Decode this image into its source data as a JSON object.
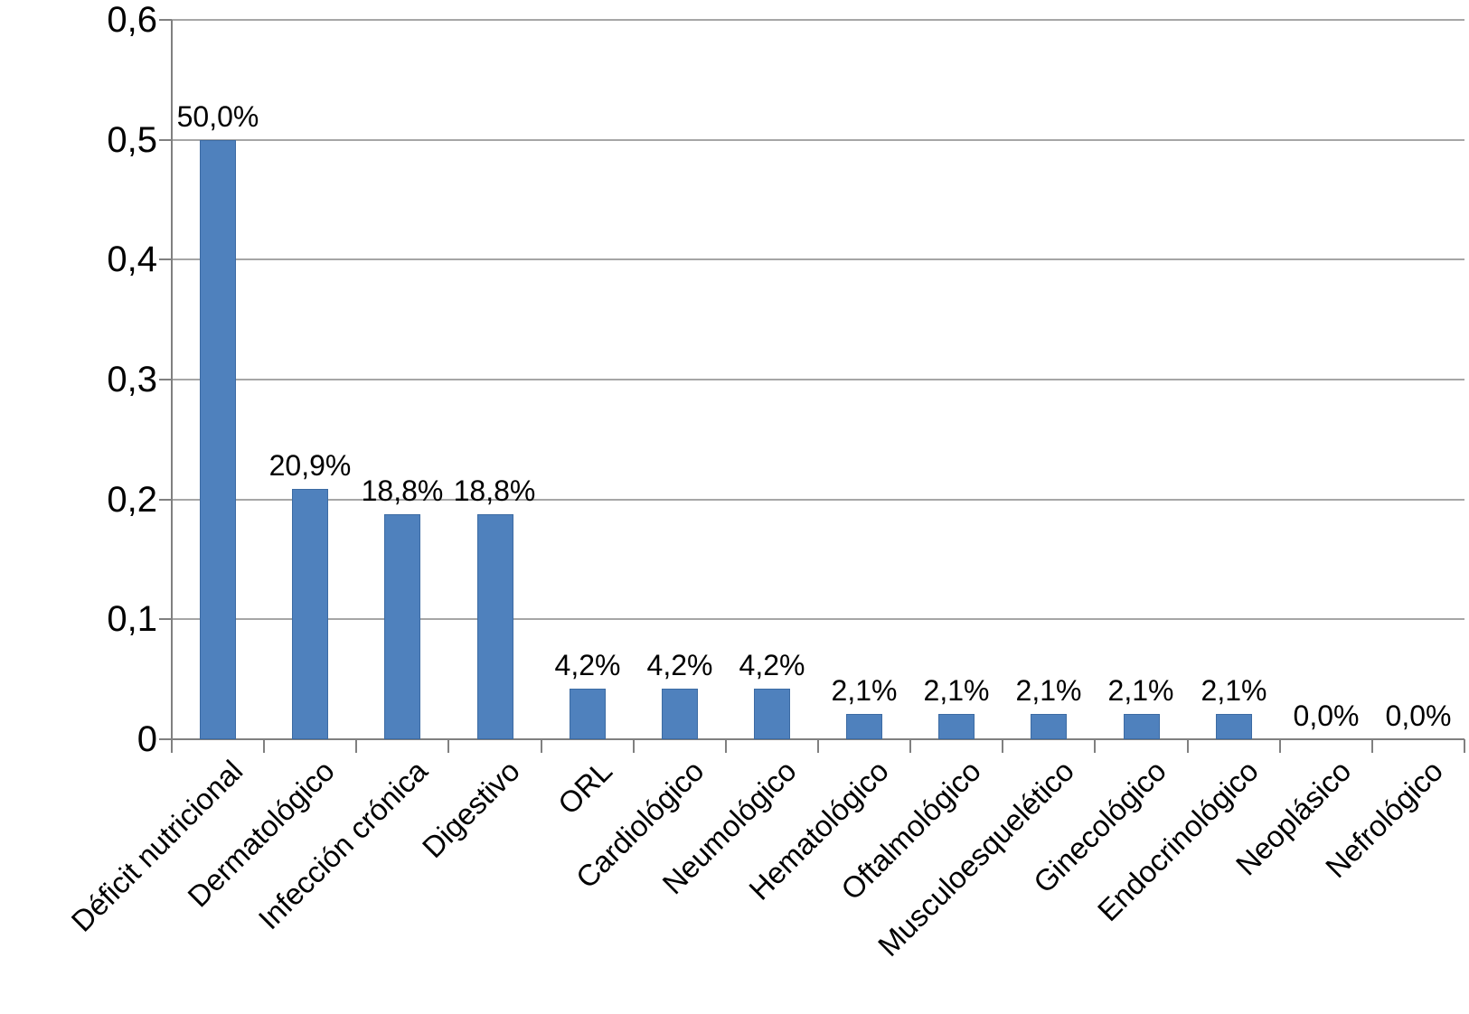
{
  "chart_data": {
    "type": "bar",
    "title": "",
    "xlabel": "",
    "ylabel": "",
    "categories": [
      "Déficit nutricional",
      "Dermatológico",
      "Infección crónica",
      "Digestivo",
      "ORL",
      "Cardiológico",
      "Neumológico",
      "Hematológico",
      "Oftalmológico",
      "Musculoesquelético",
      "Ginecológico",
      "Endocrinológico",
      "Neoplásico",
      "Nefrológico"
    ],
    "values": [
      0.5,
      0.209,
      0.188,
      0.188,
      0.042,
      0.042,
      0.042,
      0.021,
      0.021,
      0.021,
      0.021,
      0.021,
      0.0,
      0.0
    ],
    "data_labels": [
      "50,0%",
      "20,9%",
      "18,8%",
      "18,8%",
      "4,2%",
      "4,2%",
      "4,2%",
      "2,1%",
      "2,1%",
      "2,1%",
      "2,1%",
      "2,1%",
      "0,0%",
      "0,0%"
    ],
    "y_axis": {
      "ticks": [
        {
          "label": "0",
          "value": 0.0
        },
        {
          "label": "0,1",
          "value": 0.1
        },
        {
          "label": "0,2",
          "value": 0.2
        },
        {
          "label": "0,3",
          "value": 0.3
        },
        {
          "label": "0,4",
          "value": 0.4
        },
        {
          "label": "0,5",
          "value": 0.5
        },
        {
          "label": "0,6",
          "value": 0.6
        }
      ]
    },
    "ylim": [
      0,
      0.6
    ],
    "grid": true,
    "legend": false,
    "colors": {
      "bar_fill": "#4F81BD",
      "bar_border": "#3C6BA3",
      "gridline": "#A6A6A6",
      "axis": "#808080",
      "text": "#000000",
      "background": "#FFFFFF"
    }
  }
}
